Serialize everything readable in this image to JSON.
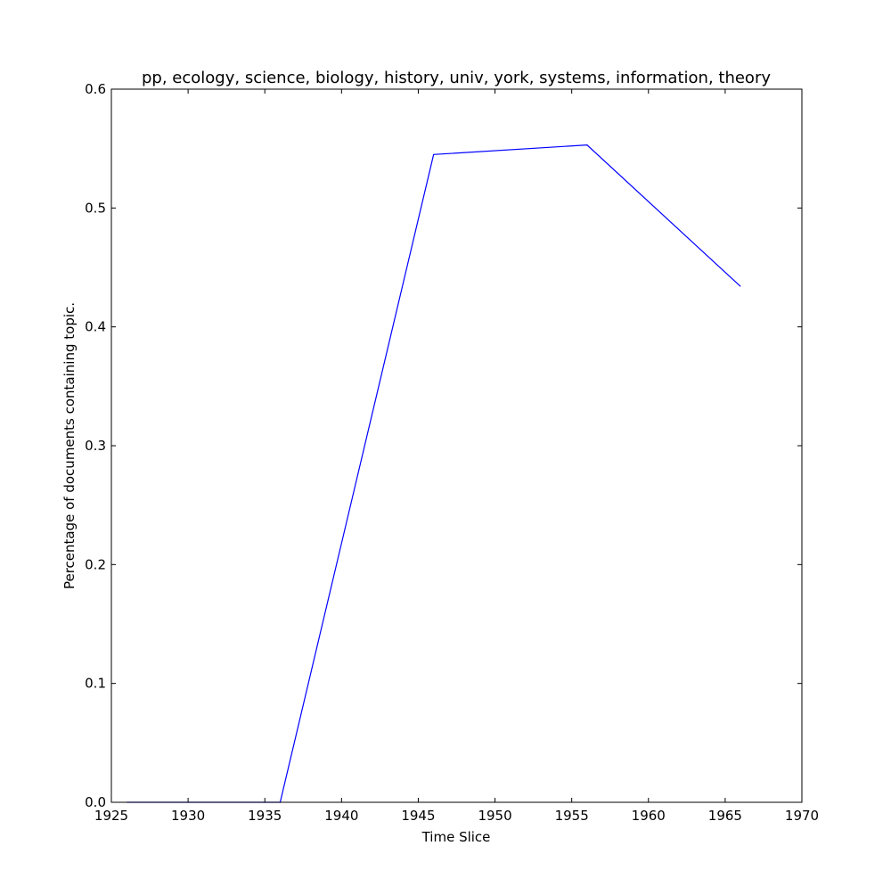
{
  "chart_data": {
    "type": "line",
    "title": "pp, ecology, science, biology, history, univ, york, systems, information, theory",
    "xlabel": "Time Slice",
    "ylabel": "Percentage of documents containing topic.",
    "xlim": [
      1925,
      1970
    ],
    "ylim": [
      0.0,
      0.6
    ],
    "xticks": [
      1925,
      1930,
      1935,
      1940,
      1945,
      1950,
      1955,
      1960,
      1965,
      1970
    ],
    "yticks": [
      0.0,
      0.1,
      0.2,
      0.3,
      0.4,
      0.5,
      0.6
    ],
    "xtick_labels": [
      "1925",
      "1930",
      "1935",
      "1940",
      "1945",
      "1950",
      "1955",
      "1960",
      "1965",
      "1970"
    ],
    "ytick_labels": [
      "0.0",
      "0.1",
      "0.2",
      "0.3",
      "0.4",
      "0.5",
      "0.6"
    ],
    "grid": false,
    "series": [
      {
        "color": "#0000ff",
        "x": [
          1926,
          1936,
          1946,
          1956,
          1966
        ],
        "y": [
          0.0,
          0.0,
          0.545,
          0.553,
          0.434
        ]
      }
    ]
  }
}
